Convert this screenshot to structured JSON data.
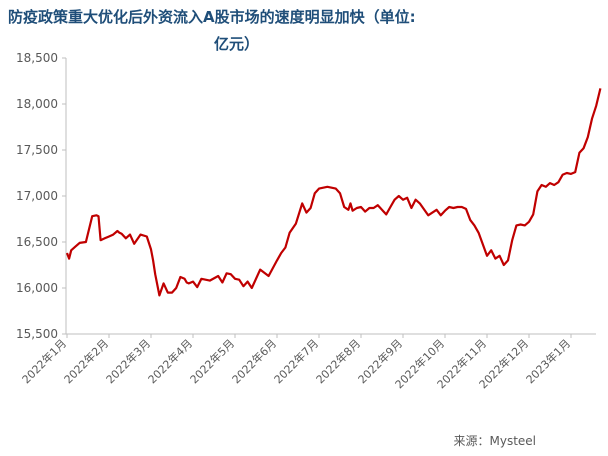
{
  "chart_data": {
    "type": "line",
    "title_line1": "防疫政策重大优化后外资流入A股市场的速度明显加快（单位:",
    "title_line2": "亿元）",
    "ylim": [
      15500,
      18500
    ],
    "yticks": [
      "15,500",
      "16,000",
      "16,500",
      "17,000",
      "17,500",
      "18,000",
      "18,500"
    ],
    "ytick_values": [
      15500,
      16000,
      16500,
      17000,
      17500,
      18000,
      18500
    ],
    "xticks": [
      "2022年1月",
      "2022年2月",
      "2022年3月",
      "2022年4月",
      "2022年5月",
      "2022年6月",
      "2022年7月",
      "2022年8月",
      "2022年9月",
      "2022年10月",
      "2022年11月",
      "2022年12月",
      "2023年1月"
    ],
    "grid": false,
    "line_color": "#c00000",
    "series": [
      {
        "x": [
          0,
          0.05,
          0.1,
          0.2,
          0.3,
          0.45,
          0.6,
          0.7,
          0.75,
          0.8,
          0.9,
          1.0,
          1.1,
          1.2,
          1.25,
          1.3,
          1.4,
          1.5,
          1.6,
          1.75,
          1.9,
          2.0,
          2.05,
          2.1,
          2.2,
          2.3,
          2.4,
          2.5,
          2.6,
          2.7,
          2.8,
          2.85,
          2.9,
          3.0,
          3.1,
          3.2,
          3.4,
          3.6,
          3.7,
          3.8,
          3.9,
          4.0,
          4.1,
          4.2,
          4.3,
          4.4,
          4.6,
          4.8,
          5.0,
          5.1,
          5.2,
          5.3,
          5.45,
          5.6,
          5.7,
          5.8,
          5.9,
          6.0,
          6.2,
          6.4,
          6.5,
          6.6,
          6.7,
          6.75,
          6.8,
          6.9,
          7.0,
          7.1,
          7.2,
          7.3,
          7.4,
          7.6,
          7.7,
          7.8,
          7.9,
          8.0,
          8.1,
          8.2,
          8.3,
          8.4,
          8.6,
          8.8,
          8.9,
          9.0,
          9.1,
          9.2,
          9.3,
          9.4,
          9.5,
          9.6,
          9.7,
          9.8,
          10.0,
          10.1,
          10.2,
          10.3,
          10.4,
          10.5,
          10.6,
          10.7,
          10.8,
          10.9,
          11.0,
          11.1,
          11.2,
          11.3,
          11.4,
          11.5,
          11.6,
          11.7,
          11.8,
          11.9,
          12.0,
          12.1,
          12.2,
          12.3,
          12.4,
          12.5,
          12.6,
          12.7
        ],
        "values": [
          16380,
          16320,
          16410,
          16450,
          16490,
          16500,
          16780,
          16790,
          16780,
          16520,
          16540,
          16560,
          16580,
          16620,
          16600,
          16590,
          16540,
          16580,
          16480,
          16580,
          16560,
          16420,
          16300,
          16150,
          15920,
          16050,
          15950,
          15950,
          16000,
          16120,
          16100,
          16060,
          16050,
          16070,
          16010,
          16100,
          16080,
          16130,
          16060,
          16160,
          16150,
          16100,
          16090,
          16020,
          16070,
          16000,
          16200,
          16130,
          16300,
          16380,
          16440,
          16600,
          16700,
          16920,
          16820,
          16870,
          17030,
          17080,
          17100,
          17080,
          17030,
          16880,
          16850,
          16920,
          16840,
          16870,
          16880,
          16830,
          16870,
          16870,
          16900,
          16800,
          16880,
          16960,
          17000,
          16960,
          16980,
          16870,
          16960,
          16920,
          16790,
          16850,
          16790,
          16840,
          16880,
          16870,
          16880,
          16880,
          16860,
          16740,
          16680,
          16600,
          16350,
          16410,
          16320,
          16350,
          16250,
          16300,
          16520,
          16680,
          16690,
          16680,
          16720,
          16800,
          17050,
          17120,
          17100,
          17140,
          17120,
          17150,
          17230,
          17250,
          17240,
          17260,
          17470,
          17520,
          17640,
          17840,
          17980,
          18170
        ]
      }
    ]
  },
  "source": "来源：Mysteel"
}
